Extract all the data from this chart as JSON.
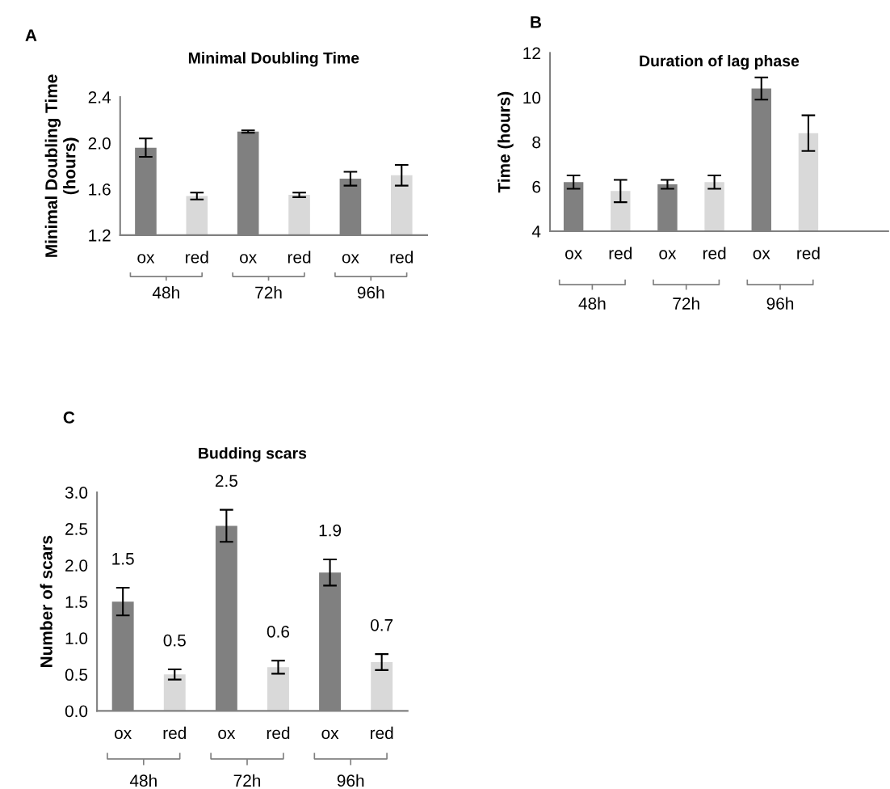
{
  "chart_data": [
    {
      "type": "bar",
      "title": "Minimal Doubling Time",
      "ylabel": "Minimal Doubling Time\n(hours)",
      "categories": [
        "ox",
        "red",
        "ox",
        "red",
        "ox",
        "red"
      ],
      "values": [
        1.96,
        1.54,
        2.1,
        1.55,
        1.69,
        1.72
      ],
      "errors": [
        0.08,
        0.03,
        0.01,
        0.02,
        0.06,
        0.09
      ],
      "colors": [
        "#808080",
        "#d9d9d9",
        "#808080",
        "#d9d9d9",
        "#808080",
        "#d9d9d9"
      ],
      "ylim": [
        1.2,
        2.4
      ],
      "yticks": [
        {
          "value": 1.2,
          "label": "1.2"
        },
        {
          "value": 1.6,
          "label": "1.6"
        },
        {
          "value": 2.0,
          "label": "2.0"
        },
        {
          "value": 2.4,
          "label": "2.4"
        }
      ],
      "annotations": [
        "A",
        "48h",
        "72h",
        "96h"
      ]
    },
    {
      "type": "bar",
      "title": "Duration of lag phase",
      "ylabel": "Time (hours)",
      "categories": [
        "ox",
        "red",
        "ox",
        "red",
        "ox",
        "red"
      ],
      "values": [
        6.2,
        5.8,
        6.1,
        6.2,
        10.4,
        8.4
      ],
      "errors": [
        0.3,
        0.5,
        0.2,
        0.3,
        0.5,
        0.8
      ],
      "colors": [
        "#808080",
        "#d9d9d9",
        "#808080",
        "#d9d9d9",
        "#808080",
        "#d9d9d9"
      ],
      "ylim": [
        4,
        12
      ],
      "yticks": [
        4,
        6,
        8,
        10,
        12
      ],
      "annotations": [
        "B",
        "48h",
        "72h",
        "96h"
      ]
    },
    {
      "type": "bar",
      "title": "Budding scars",
      "ylabel": "Number of scars",
      "categories": [
        "ox",
        "red",
        "ox",
        "red",
        "ox",
        "red"
      ],
      "values": [
        1.5,
        0.5,
        2.54,
        0.6,
        1.9,
        0.67
      ],
      "errors": [
        0.19,
        0.07,
        0.22,
        0.09,
        0.18,
        0.11
      ],
      "value_labels": [
        "1.5",
        "0.5",
        "2.5",
        "0.6",
        "1.9",
        "0.7"
      ],
      "colors": [
        "#808080",
        "#d9d9d9",
        "#808080",
        "#d9d9d9",
        "#808080",
        "#d9d9d9"
      ],
      "ylim": [
        0,
        3
      ],
      "yticks": [
        {
          "value": 0,
          "label": "0.0"
        },
        {
          "value": 0.5,
          "label": "0.5"
        },
        {
          "value": 1.0,
          "label": "1.0"
        },
        {
          "value": 1.5,
          "label": "1.5"
        },
        {
          "value": 2.0,
          "label": "2.0"
        },
        {
          "value": 2.5,
          "label": "2.5"
        },
        {
          "value": 3.0,
          "label": "3.0"
        }
      ],
      "annotations": [
        "C",
        "48h",
        "72h",
        "96h"
      ]
    }
  ]
}
